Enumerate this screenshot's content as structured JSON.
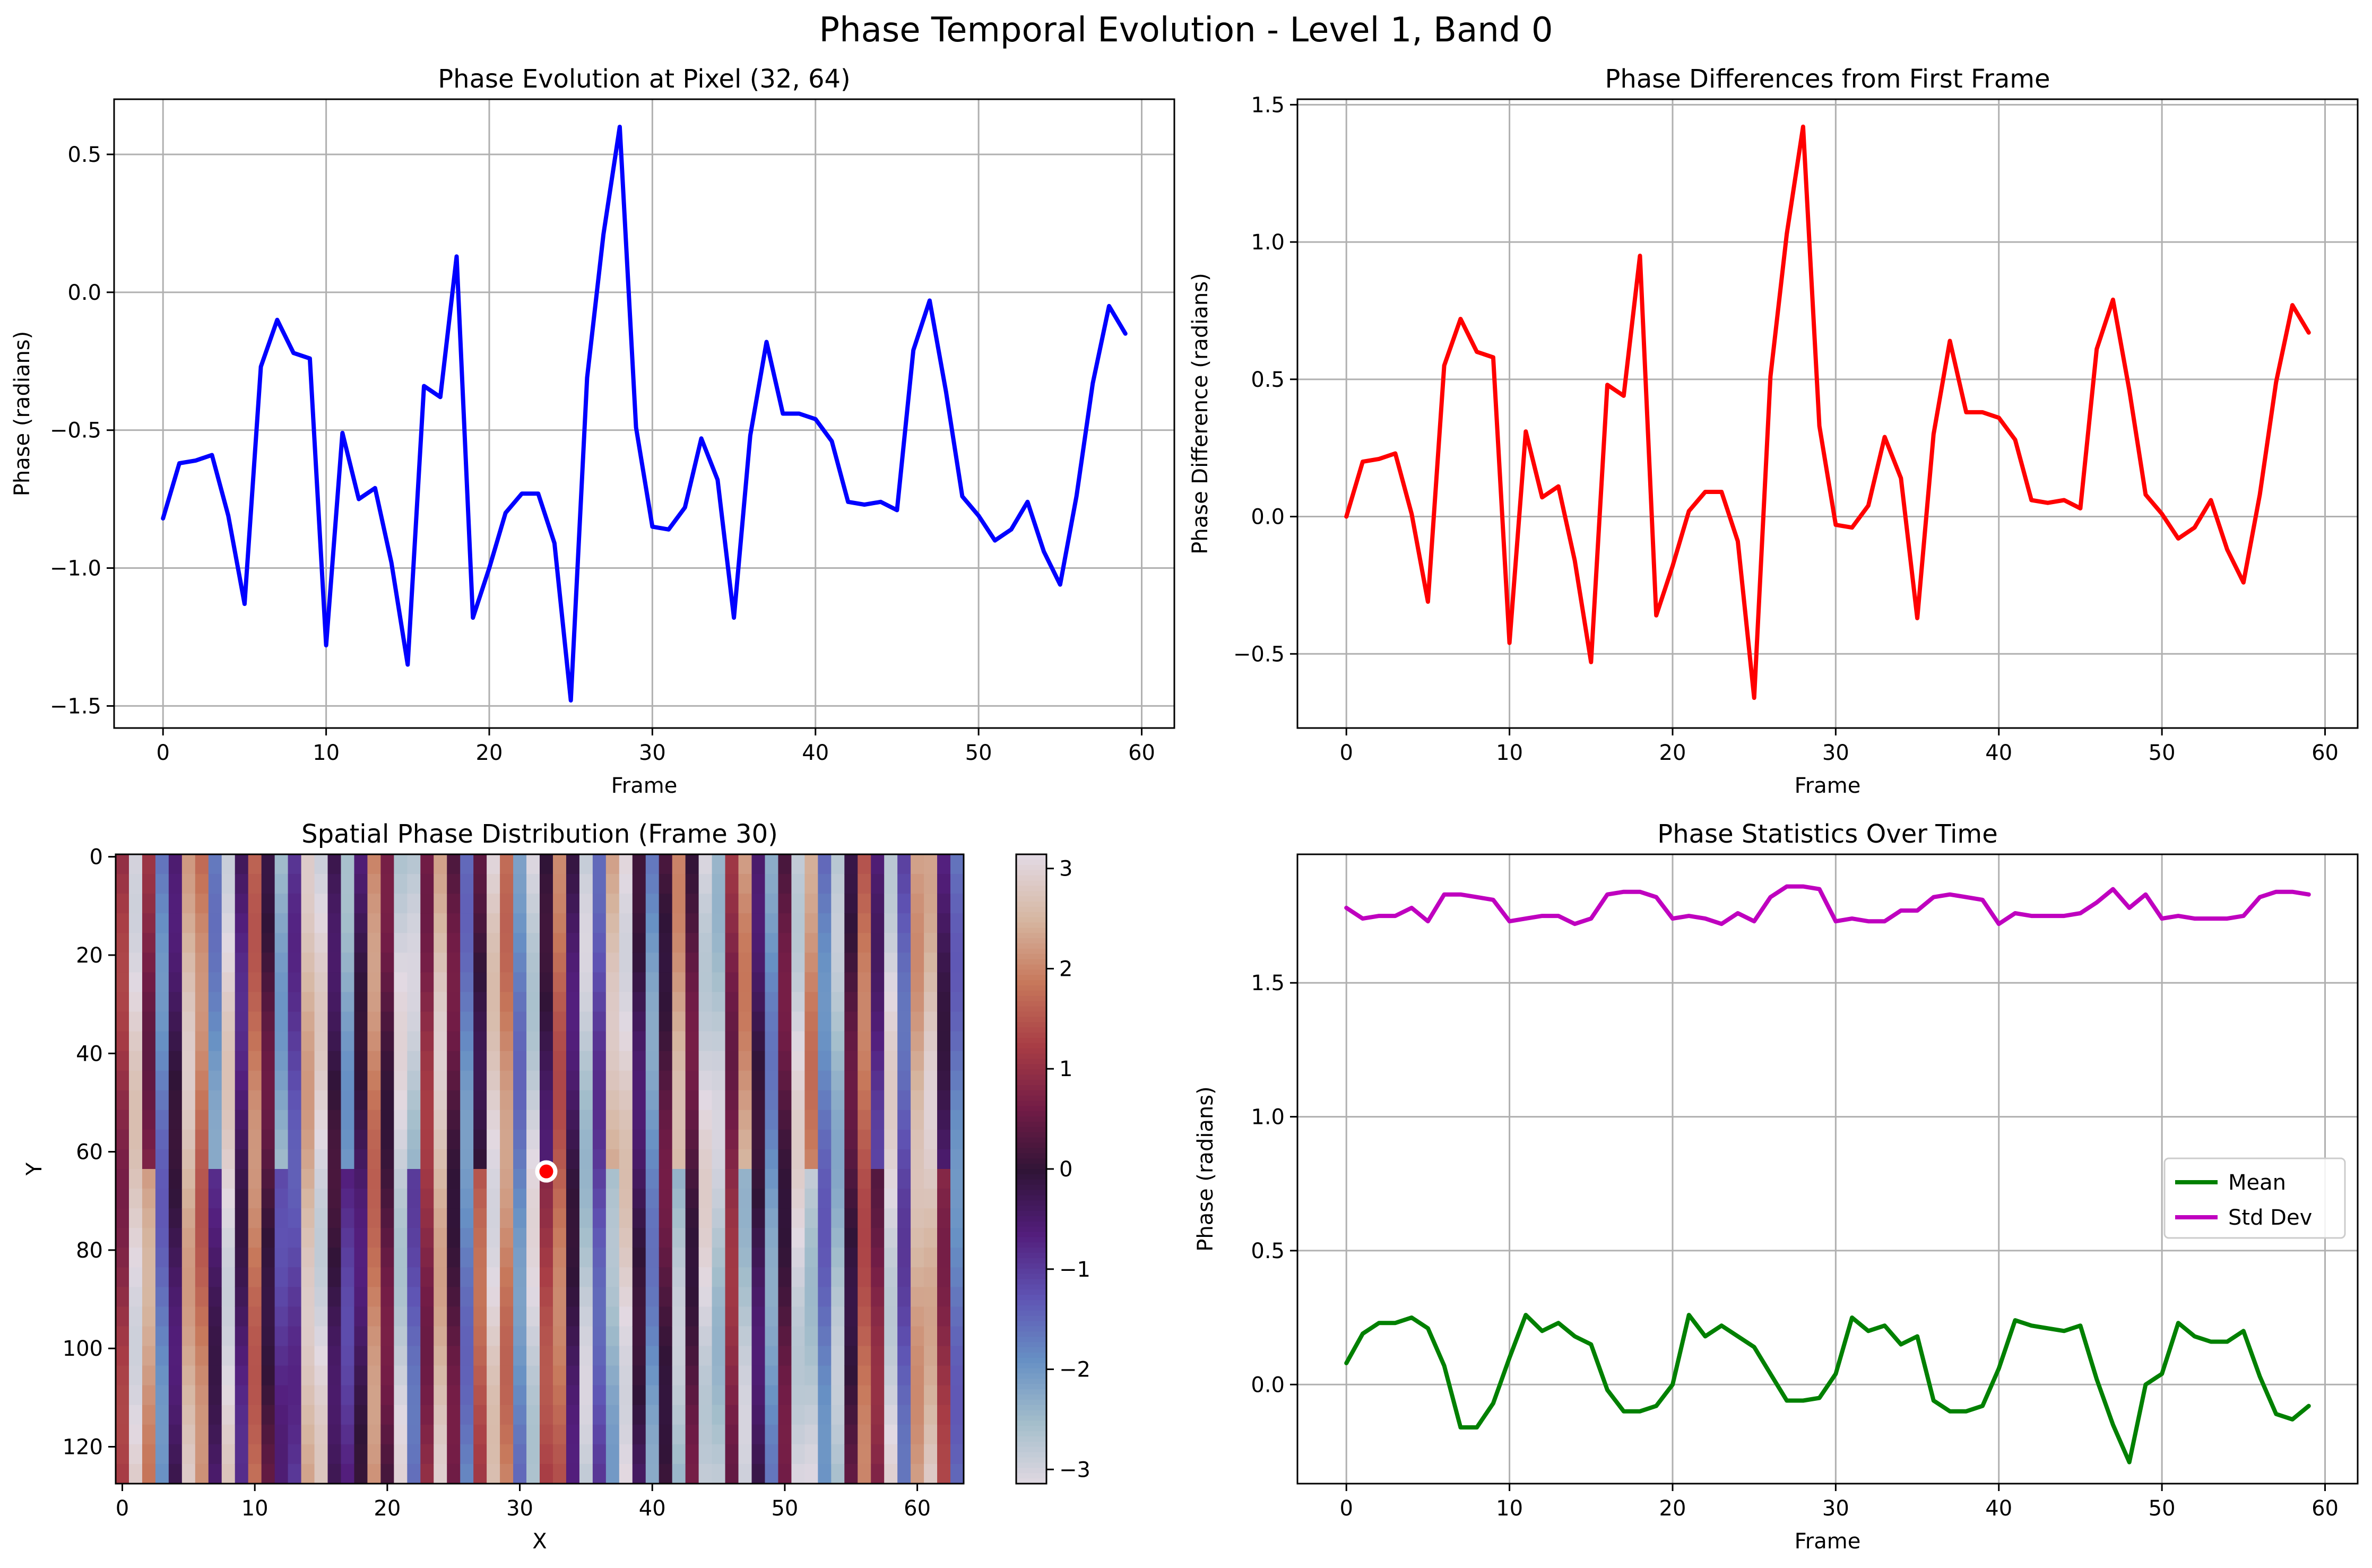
{
  "figure": {
    "title": "Phase Temporal Evolution - Level 1, Band 0"
  },
  "colors": {
    "pixel_line": "#0000ff",
    "diff_line": "#ff0000",
    "mean_line": "#008000",
    "std_line": "#bf00bf",
    "grid": "#b0b0b0",
    "marker_fill": "#ff0000",
    "marker_edge": "#ffffff"
  },
  "chart_data": [
    {
      "type": "line",
      "title": "Phase Evolution at Pixel (32, 64)",
      "xlabel": "Frame",
      "ylabel": "Phase (radians)",
      "xlim": [
        -3,
        62
      ],
      "ylim": [
        -1.58,
        0.7
      ],
      "xticks": [
        0,
        10,
        20,
        30,
        40,
        50,
        60
      ],
      "yticks": [
        -1.5,
        -1.0,
        -0.5,
        0.0,
        0.5
      ],
      "grid": true,
      "series": [
        {
          "color": "#0000ff",
          "x": [
            0,
            1,
            2,
            3,
            4,
            5,
            6,
            7,
            8,
            9,
            10,
            11,
            12,
            13,
            14,
            15,
            16,
            17,
            18,
            19,
            20,
            21,
            22,
            23,
            24,
            25,
            26,
            27,
            28,
            29,
            30,
            31,
            32,
            33,
            34,
            35,
            36,
            37,
            38,
            39,
            40,
            41,
            42,
            43,
            44,
            45,
            46,
            47,
            48,
            49,
            50,
            51,
            52,
            53,
            54,
            55,
            56,
            57,
            58,
            59
          ],
          "values": [
            -0.82,
            -0.62,
            -0.61,
            -0.59,
            -0.81,
            -1.13,
            -0.27,
            -0.1,
            -0.22,
            -0.24,
            -1.28,
            -0.51,
            -0.75,
            -0.71,
            -0.98,
            -1.35,
            -0.34,
            -0.38,
            0.13,
            -1.18,
            -1.0,
            -0.8,
            -0.73,
            -0.73,
            -0.91,
            -1.48,
            -0.31,
            0.21,
            0.6,
            -0.49,
            -0.85,
            -0.86,
            -0.78,
            -0.53,
            -0.68,
            -1.18,
            -0.52,
            -0.18,
            -0.44,
            -0.44,
            -0.46,
            -0.54,
            -0.76,
            -0.77,
            -0.76,
            -0.79,
            -0.21,
            -0.03,
            -0.36,
            -0.74,
            -0.81,
            -0.9,
            -0.86,
            -0.76,
            -0.94,
            -1.06,
            -0.74,
            -0.33,
            -0.05,
            -0.15
          ]
        }
      ]
    },
    {
      "type": "line",
      "title": "Phase Differences from First Frame",
      "xlabel": "Frame",
      "ylabel": "Phase Difference (radians)",
      "xlim": [
        -3,
        62
      ],
      "ylim": [
        -0.77,
        1.52
      ],
      "xticks": [
        0,
        10,
        20,
        30,
        40,
        50,
        60
      ],
      "yticks": [
        -0.5,
        0.0,
        0.5,
        1.0,
        1.5
      ],
      "grid": true,
      "series": [
        {
          "color": "#ff0000",
          "x": [
            0,
            1,
            2,
            3,
            4,
            5,
            6,
            7,
            8,
            9,
            10,
            11,
            12,
            13,
            14,
            15,
            16,
            17,
            18,
            19,
            20,
            21,
            22,
            23,
            24,
            25,
            26,
            27,
            28,
            29,
            30,
            31,
            32,
            33,
            34,
            35,
            36,
            37,
            38,
            39,
            40,
            41,
            42,
            43,
            44,
            45,
            46,
            47,
            48,
            49,
            50,
            51,
            52,
            53,
            54,
            55,
            56,
            57,
            58,
            59
          ],
          "values": [
            0.0,
            0.2,
            0.21,
            0.23,
            0.01,
            -0.31,
            0.55,
            0.72,
            0.6,
            0.58,
            -0.46,
            0.31,
            0.07,
            0.11,
            -0.16,
            -0.53,
            0.48,
            0.44,
            0.95,
            -0.36,
            -0.18,
            0.02,
            0.09,
            0.09,
            -0.09,
            -0.66,
            0.51,
            1.03,
            1.42,
            0.33,
            -0.03,
            -0.04,
            0.04,
            0.29,
            0.14,
            -0.37,
            0.3,
            0.64,
            0.38,
            0.38,
            0.36,
            0.28,
            0.06,
            0.05,
            0.06,
            0.03,
            0.61,
            0.79,
            0.46,
            0.08,
            0.01,
            -0.08,
            -0.04,
            0.06,
            -0.12,
            -0.24,
            0.08,
            0.49,
            0.77,
            0.67
          ]
        }
      ]
    },
    {
      "type": "heatmap",
      "title": "Spatial Phase Distribution (Frame 30)",
      "xlabel": "X",
      "ylabel": "Y",
      "x_range": [
        0,
        64
      ],
      "y_range": [
        0,
        128
      ],
      "xticks": [
        0,
        10,
        20,
        30,
        40,
        50,
        60
      ],
      "yticks": [
        0,
        20,
        40,
        60,
        80,
        100,
        120
      ],
      "colorbar_ticks": [
        3,
        2,
        1,
        0,
        -1,
        -2,
        -3
      ],
      "color_range": [
        -3.1416,
        3.1416
      ],
      "colormap": "twilight",
      "marker": {
        "x": 32,
        "y": 64
      }
    },
    {
      "type": "line",
      "title": "Phase Statistics Over Time",
      "xlabel": "Frame",
      "ylabel": "Phase (radians)",
      "xlim": [
        -3,
        62
      ],
      "ylim": [
        -0.37,
        1.98
      ],
      "xticks": [
        0,
        10,
        20,
        30,
        40,
        50,
        60
      ],
      "yticks": [
        0.0,
        0.5,
        1.0,
        1.5
      ],
      "grid": true,
      "legend": "center-right",
      "series": [
        {
          "name": "Mean",
          "color": "#008000",
          "x": [
            0,
            1,
            2,
            3,
            4,
            5,
            6,
            7,
            8,
            9,
            10,
            11,
            12,
            13,
            14,
            15,
            16,
            17,
            18,
            19,
            20,
            21,
            22,
            23,
            24,
            25,
            26,
            27,
            28,
            29,
            30,
            31,
            32,
            33,
            34,
            35,
            36,
            37,
            38,
            39,
            40,
            41,
            42,
            43,
            44,
            45,
            46,
            47,
            48,
            49,
            50,
            51,
            52,
            53,
            54,
            55,
            56,
            57,
            58,
            59
          ],
          "values": [
            0.08,
            0.19,
            0.23,
            0.23,
            0.25,
            0.21,
            0.07,
            -0.16,
            -0.16,
            -0.07,
            0.1,
            0.26,
            0.2,
            0.23,
            0.18,
            0.15,
            -0.02,
            -0.1,
            -0.1,
            -0.08,
            0.0,
            0.26,
            0.18,
            0.22,
            0.18,
            0.14,
            0.04,
            -0.06,
            -0.06,
            -0.05,
            0.04,
            0.25,
            0.2,
            0.22,
            0.15,
            0.18,
            -0.06,
            -0.1,
            -0.1,
            -0.08,
            0.06,
            0.24,
            0.22,
            0.21,
            0.2,
            0.22,
            0.02,
            -0.15,
            -0.29,
            0.0,
            0.04,
            0.23,
            0.18,
            0.16,
            0.16,
            0.2,
            0.03,
            -0.11,
            -0.13,
            -0.08
          ]
        },
        {
          "name": "Std Dev",
          "color": "#bf00bf",
          "x": [
            0,
            1,
            2,
            3,
            4,
            5,
            6,
            7,
            8,
            9,
            10,
            11,
            12,
            13,
            14,
            15,
            16,
            17,
            18,
            19,
            20,
            21,
            22,
            23,
            24,
            25,
            26,
            27,
            28,
            29,
            30,
            31,
            32,
            33,
            34,
            35,
            36,
            37,
            38,
            39,
            40,
            41,
            42,
            43,
            44,
            45,
            46,
            47,
            48,
            49,
            50,
            51,
            52,
            53,
            54,
            55,
            56,
            57,
            58,
            59
          ],
          "values": [
            1.78,
            1.74,
            1.75,
            1.75,
            1.78,
            1.73,
            1.83,
            1.83,
            1.82,
            1.81,
            1.73,
            1.74,
            1.75,
            1.75,
            1.72,
            1.74,
            1.83,
            1.84,
            1.84,
            1.82,
            1.74,
            1.75,
            1.74,
            1.72,
            1.76,
            1.73,
            1.82,
            1.86,
            1.86,
            1.85,
            1.73,
            1.74,
            1.73,
            1.73,
            1.77,
            1.77,
            1.82,
            1.83,
            1.82,
            1.81,
            1.72,
            1.76,
            1.75,
            1.75,
            1.75,
            1.76,
            1.8,
            1.85,
            1.78,
            1.83,
            1.74,
            1.75,
            1.74,
            1.74,
            1.74,
            1.75,
            1.82,
            1.84,
            1.84,
            1.83
          ]
        }
      ]
    }
  ]
}
